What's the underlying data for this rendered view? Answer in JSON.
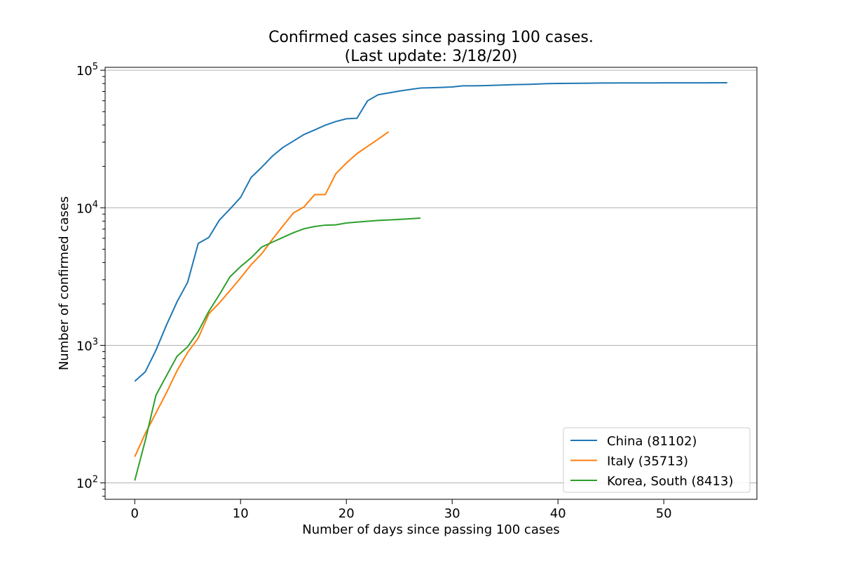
{
  "title_line1": "Confirmed cases since passing 100 cases.",
  "title_line2": "(Last update: 3/18/20)",
  "chart_data": {
    "type": "line",
    "title": "Confirmed cases since passing 100 cases.\n(Last update: 3/18/20)",
    "xlabel": "Number of days since passing 100 cases",
    "ylabel": "Number of confirmed cases",
    "xlim": [
      -2.8,
      58.8
    ],
    "ylim": [
      76,
      105000
    ],
    "yscale": "log",
    "grid": "horizontal major lines on y-axis",
    "legend_position": "lower-right",
    "x_ticks": [
      0,
      10,
      20,
      30,
      40,
      50
    ],
    "y_ticks": [
      {
        "value": 100,
        "base": "10",
        "exp": "2"
      },
      {
        "value": 1000,
        "base": "10",
        "exp": "3"
      },
      {
        "value": 10000,
        "base": "10",
        "exp": "4"
      },
      {
        "value": 100000,
        "base": "10",
        "exp": "5"
      }
    ],
    "series": [
      {
        "name": "China (81102)",
        "color": "#1f77b4",
        "x": [
          0,
          1,
          2,
          3,
          4,
          5,
          6,
          7,
          8,
          9,
          10,
          11,
          12,
          13,
          14,
          15,
          16,
          17,
          18,
          19,
          20,
          21,
          22,
          23,
          24,
          25,
          26,
          27,
          28,
          29,
          30,
          31,
          32,
          33,
          34,
          35,
          36,
          37,
          38,
          39,
          40,
          41,
          42,
          43,
          44,
          45,
          46,
          47,
          48,
          49,
          50,
          51,
          52,
          53,
          54,
          55,
          56
        ],
        "y": [
          548,
          643,
          920,
          1406,
          2075,
          2877,
          5509,
          6087,
          8141,
          9802,
          11891,
          16630,
          19716,
          23707,
          27440,
          30587,
          34110,
          36814,
          39829,
          42354,
          44386,
          44759,
          59895,
          66358,
          68413,
          70513,
          72434,
          74211,
          74619,
          75077,
          75550,
          77001,
          77022,
          77241,
          77754,
          78166,
          78600,
          78928,
          79356,
          79932,
          80136,
          80261,
          80386,
          80537,
          80690,
          80770,
          80823,
          80860,
          80887,
          80921,
          80932,
          80945,
          80977,
          81003,
          81033,
          81058,
          81102
        ]
      },
      {
        "name": "Italy (35713)",
        "color": "#ff7f0e",
        "x": [
          0,
          1,
          2,
          3,
          4,
          5,
          6,
          7,
          8,
          9,
          10,
          11,
          12,
          13,
          14,
          15,
          16,
          17,
          18,
          19,
          20,
          21,
          22,
          23,
          24
        ],
        "y": [
          155,
          229,
          322,
          453,
          655,
          888,
          1128,
          1694,
          2036,
          2502,
          3089,
          3858,
          4636,
          5883,
          7375,
          9172,
          10149,
          12462,
          12462,
          17660,
          21157,
          24747,
          27980,
          31506,
          35713
        ]
      },
      {
        "name": "Korea, South (8413)",
        "color": "#2ca02c",
        "x": [
          0,
          1,
          2,
          3,
          4,
          5,
          6,
          7,
          8,
          9,
          10,
          11,
          12,
          13,
          14,
          15,
          16,
          17,
          18,
          19,
          20,
          21,
          22,
          23,
          24,
          25,
          26,
          27
        ],
        "y": [
          104,
          204,
          433,
          602,
          833,
          977,
          1261,
          1766,
          2337,
          3150,
          3736,
          4335,
          5186,
          5621,
          6088,
          6593,
          7041,
          7314,
          7478,
          7513,
          7755,
          7869,
          7979,
          8086,
          8162,
          8236,
          8320,
          8413
        ]
      }
    ]
  }
}
